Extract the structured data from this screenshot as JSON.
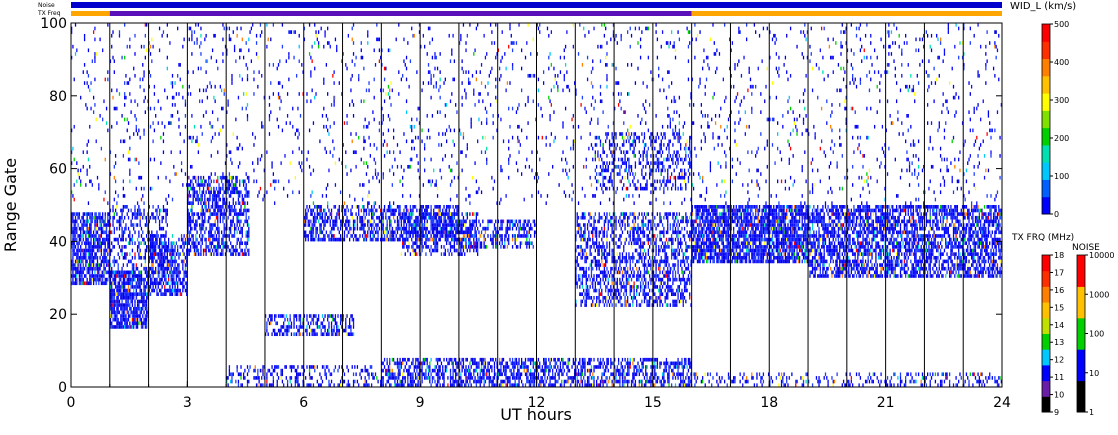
{
  "chart_data": {
    "type": "heatmap",
    "xlabel": "UT hours",
    "ylabel": "Range Gate",
    "xlim": [
      0,
      24
    ],
    "ylim": [
      0,
      100
    ],
    "x_ticks": [
      "0",
      "3",
      "6",
      "9",
      "12",
      "15",
      "18",
      "21",
      "24"
    ],
    "y_ticks": [
      "0",
      "20",
      "40",
      "60",
      "80",
      "100"
    ],
    "top_bars": {
      "noise_label": "Noise",
      "txfreq_label": "TX Freq",
      "txfreq_segments": [
        {
          "from": 0,
          "to": 1,
          "color": "#ffa500"
        },
        {
          "from": 1,
          "to": 16,
          "color": "#5a10b8"
        },
        {
          "from": 16,
          "to": 24,
          "color": "#ffa500"
        }
      ]
    },
    "width_colorbar": {
      "title": "WID_L (km/s)",
      "ticks": [
        "0",
        "100",
        "200",
        "300",
        "400",
        "500"
      ],
      "colors": [
        "#0000ff",
        "#0060ff",
        "#00c8ff",
        "#00e0b0",
        "#00d000",
        "#80e000",
        "#ffff00",
        "#ffc000",
        "#ff8000",
        "#ff3000",
        "#ff0000"
      ]
    },
    "freq_colorbar": {
      "title": "TX FRQ (MHz)",
      "ticks": [
        "9",
        "10",
        "11",
        "12",
        "13",
        "14",
        "15",
        "16",
        "17",
        "18"
      ],
      "colors": [
        "#000000",
        "#6a1ea8",
        "#0000ff",
        "#00c8ff",
        "#00d000",
        "#c0e000",
        "#ffc000",
        "#ff8000",
        "#ff3000",
        "#ff0000"
      ]
    },
    "noise_colorbar": {
      "title": "NOISE",
      "ticks": [
        "1",
        "10",
        "100",
        "1000",
        "10000"
      ],
      "colors": [
        "#000000",
        "#0000ff",
        "#00d000",
        "#ffc000",
        "#ff0000"
      ]
    },
    "scatter_regions": [
      {
        "x": [
          0,
          1
        ],
        "y": [
          28,
          48
        ],
        "density": 0.75
      },
      {
        "x": [
          1,
          2
        ],
        "y": [
          16,
          32
        ],
        "density": 0.85
      },
      {
        "x": [
          1,
          2.5
        ],
        "y": [
          30,
          50
        ],
        "density": 0.35
      },
      {
        "x": [
          2,
          3
        ],
        "y": [
          25,
          42
        ],
        "density": 0.6
      },
      {
        "x": [
          3,
          4.6
        ],
        "y": [
          36,
          58
        ],
        "density": 0.55
      },
      {
        "x": [
          5,
          7.3
        ],
        "y": [
          14,
          20
        ],
        "density": 0.5
      },
      {
        "x": [
          6,
          10
        ],
        "y": [
          40,
          50
        ],
        "density": 0.55
      },
      {
        "x": [
          8.5,
          10.5
        ],
        "y": [
          36,
          48
        ],
        "density": 0.45
      },
      {
        "x": [
          10,
          12
        ],
        "y": [
          38,
          46
        ],
        "density": 0.5
      },
      {
        "x": [
          13,
          16
        ],
        "y": [
          22,
          48
        ],
        "density": 0.45
      },
      {
        "x": [
          13.5,
          16
        ],
        "y": [
          54,
          70
        ],
        "density": 0.3
      },
      {
        "x": [
          16,
          19
        ],
        "y": [
          34,
          50
        ],
        "density": 0.8
      },
      {
        "x": [
          19,
          24
        ],
        "y": [
          30,
          50
        ],
        "density": 0.65
      },
      {
        "x": [
          8,
          16
        ],
        "y": [
          0,
          8
        ],
        "density": 0.55
      },
      {
        "x": [
          4,
          8
        ],
        "y": [
          0,
          6
        ],
        "density": 0.3
      },
      {
        "x": [
          16,
          24
        ],
        "y": [
          0,
          4
        ],
        "density": 0.25
      },
      {
        "x": [
          0,
          24
        ],
        "y": [
          50,
          100
        ],
        "density": 0.06
      }
    ],
    "grid": "vertical lines each hour"
  }
}
